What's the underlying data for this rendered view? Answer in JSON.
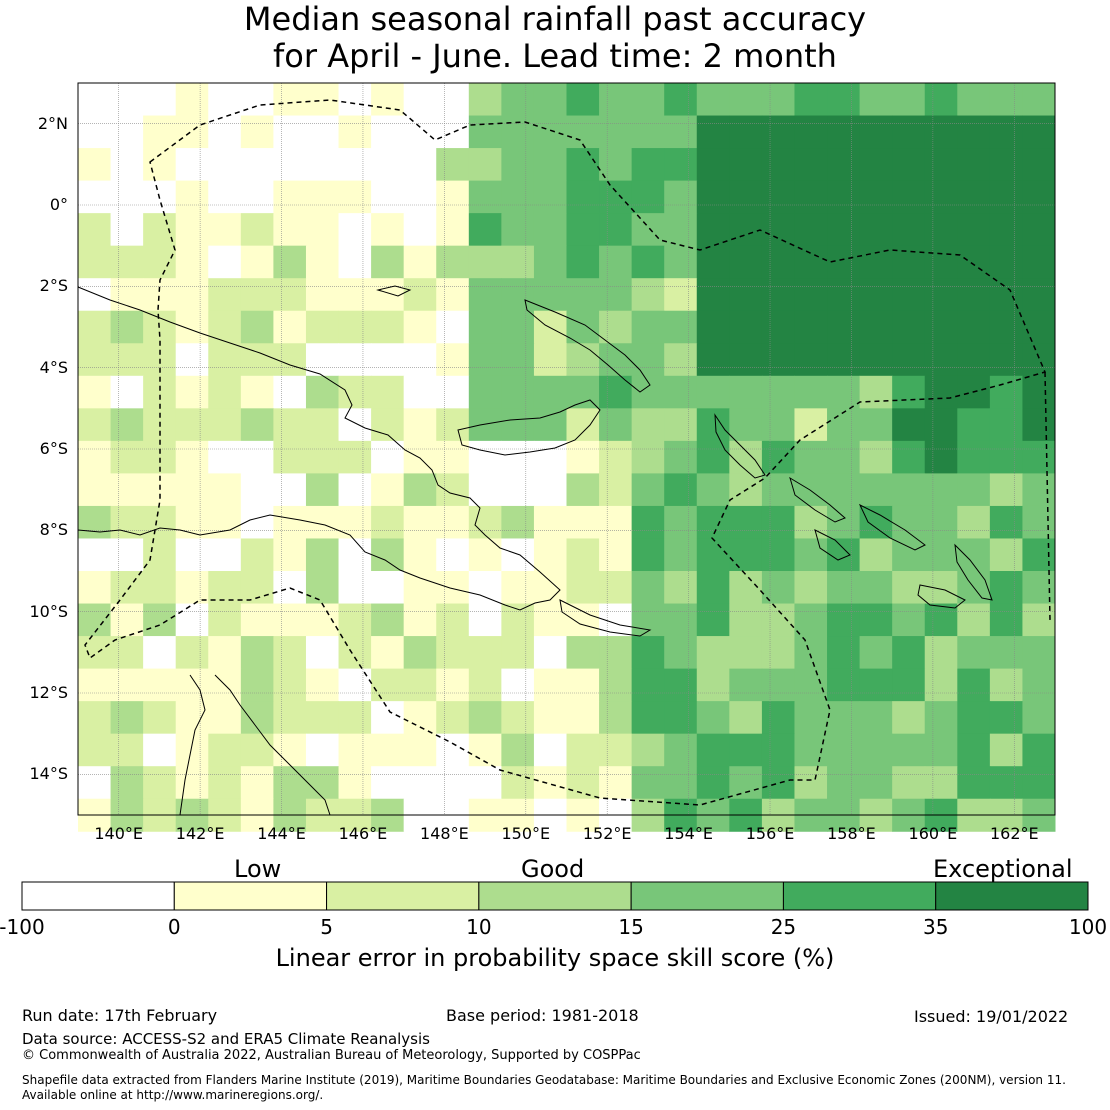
{
  "title": {
    "line1": "Median seasonal rainfall past accuracy",
    "line2": "for April - June. Lead time: 2 month"
  },
  "map": {
    "lon_range": [
      139,
      163
    ],
    "lat_range": [
      -15,
      3
    ],
    "lat_labels": [
      "2°N",
      "0°",
      "2°S",
      "4°S",
      "6°S",
      "8°S",
      "10°S",
      "12°S",
      "14°S"
    ],
    "lat_values": [
      2,
      0,
      -2,
      -4,
      -6,
      -8,
      -10,
      -12,
      -14
    ],
    "lon_labels": [
      "140°E",
      "142°E",
      "144°E",
      "146°E",
      "148°E",
      "150°E",
      "152°E",
      "154°E",
      "156°E",
      "158°E",
      "160°E",
      "162°E"
    ],
    "lon_values": [
      140,
      142,
      144,
      146,
      148,
      150,
      152,
      154,
      156,
      158,
      160,
      162
    ],
    "grid_resolution_deg": 0.8,
    "skill_field_note_regions": {
      "exceptional_core": {
        "lon": [
          154,
          163
        ],
        "lat": [
          -4,
          2
        ]
      },
      "east_good": {
        "lon": [
          153,
          163
        ],
        "lat": [
          -15,
          3
        ]
      }
    }
  },
  "colorbar": {
    "categories": [
      {
        "label": "Low"
      },
      {
        "label": "Good"
      },
      {
        "label": "Exceptional"
      }
    ],
    "ticks": [
      "-100",
      "0",
      "5",
      "10",
      "15",
      "25",
      "35",
      "100"
    ],
    "bins": [
      {
        "from": -100,
        "to": 0,
        "color": "#ffffff"
      },
      {
        "from": 0,
        "to": 5,
        "color": "#ffffcc"
      },
      {
        "from": 5,
        "to": 10,
        "color": "#d9f0a3"
      },
      {
        "from": 10,
        "to": 15,
        "color": "#addd8e"
      },
      {
        "from": 15,
        "to": 25,
        "color": "#78c679"
      },
      {
        "from": 25,
        "to": 35,
        "color": "#41ab5d"
      },
      {
        "from": 35,
        "to": 100,
        "color": "#238443"
      }
    ],
    "title": "Linear error in probability space skill score (%)"
  },
  "footer": {
    "run_date": "Run date: 17th February",
    "base_period": "Base period: 1981-2018",
    "issued": "Issued: 19/01/2022",
    "data_source": "Data source: ACCESS-S2 and ERA5 Climate Reanalysis",
    "copyright": "© Commonwealth of Australia 2022, Australian Bureau of Meteorology, Supported by COSPPac",
    "shapefile_line1": "Shapefile data extracted from Flanders Marine Institute (2019), Maritime Boundaries Geodatabase: Maritime Boundaries and Exclusive Economic Zones (200NM), version 11.",
    "shapefile_line2": "Available online at http://www.marineregions.org/."
  }
}
